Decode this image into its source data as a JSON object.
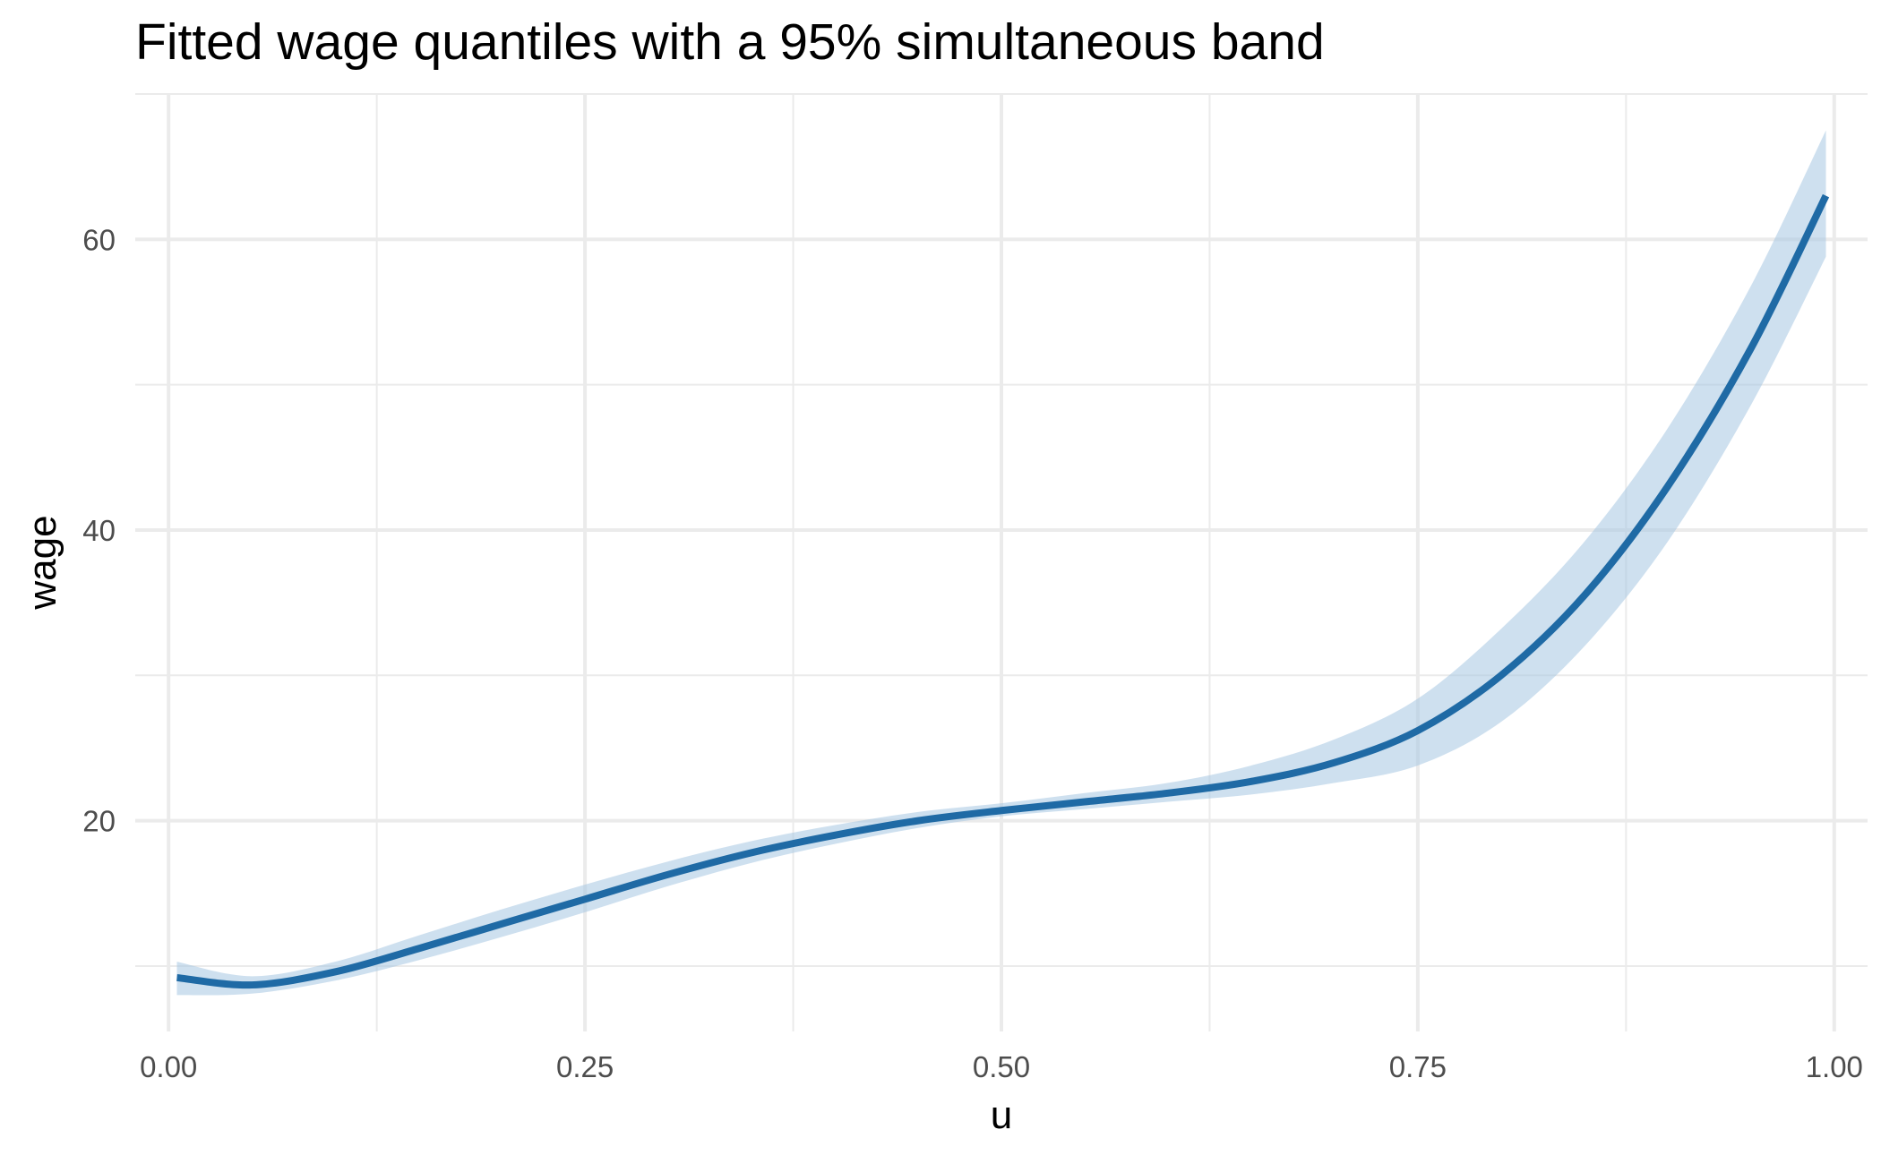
{
  "chart_data": {
    "type": "line",
    "title": "Fitted wage quantiles with a 95% simultaneous band",
    "xlabel": "u",
    "ylabel": "wage",
    "xlim": [
      -0.02,
      1.02
    ],
    "ylim": [
      5.5,
      70
    ],
    "x_ticks": [
      0.0,
      0.25,
      0.5,
      0.75,
      1.0
    ],
    "x_tick_labels": [
      "0.00",
      "0.25",
      "0.50",
      "0.75",
      "1.00"
    ],
    "y_ticks": [
      20,
      40,
      60
    ],
    "y_tick_labels": [
      "20",
      "40",
      "60"
    ],
    "grid": true,
    "colors": {
      "line": "#1f6aa5",
      "band": "#a6c6e1",
      "grid": "#ebebeb"
    },
    "series": [
      {
        "x": [
          0.005,
          0.05,
          0.1,
          0.15,
          0.2,
          0.25,
          0.3,
          0.35,
          0.4,
          0.45,
          0.5,
          0.55,
          0.6,
          0.65,
          0.7,
          0.75,
          0.8,
          0.85,
          0.9,
          0.95,
          0.995
        ],
        "y": [
          9.2,
          8.7,
          9.6,
          11.2,
          12.9,
          14.6,
          16.3,
          17.8,
          19.0,
          20.0,
          20.7,
          21.3,
          21.9,
          22.7,
          24.0,
          26.2,
          30.0,
          35.5,
          43.0,
          52.5,
          63.0
        ],
        "lower": [
          8.0,
          8.1,
          9.0,
          10.4,
          12.0,
          13.7,
          15.5,
          17.1,
          18.4,
          19.5,
          20.3,
          20.8,
          21.3,
          21.8,
          22.6,
          23.8,
          26.8,
          32.0,
          39.2,
          48.6,
          58.8
        ],
        "upper": [
          10.3,
          9.3,
          10.3,
          12.1,
          13.9,
          15.6,
          17.2,
          18.6,
          19.7,
          20.6,
          21.2,
          21.9,
          22.6,
          23.8,
          25.6,
          28.4,
          33.2,
          39.2,
          47.0,
          56.8,
          67.5
        ]
      }
    ]
  }
}
